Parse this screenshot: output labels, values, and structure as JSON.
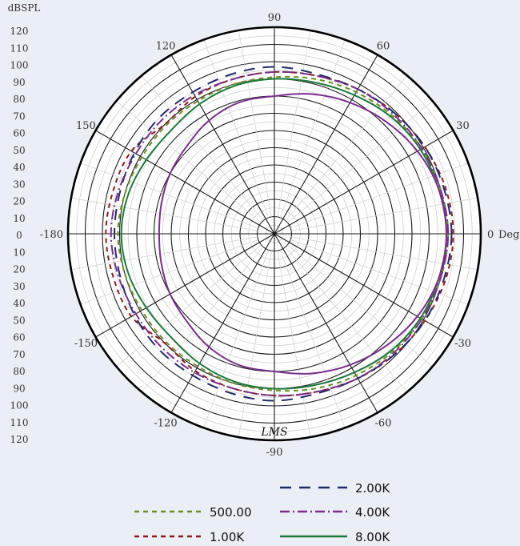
{
  "chart_data": {
    "type": "polar",
    "radial_unit": "dBSPL",
    "angle_unit": "Deg",
    "radial_ticks": [
      "120",
      "110",
      "100",
      "90",
      "80",
      "70",
      "60",
      "50",
      "40",
      "30",
      "20",
      "10",
      "0",
      "10",
      "20",
      "30",
      "40",
      "50",
      "60",
      "70",
      "80",
      "90",
      "100",
      "110",
      "120"
    ],
    "angle_labels": [
      {
        "deg": 0,
        "text": "0"
      },
      {
        "deg": 30,
        "text": "30"
      },
      {
        "deg": 60,
        "text": "60"
      },
      {
        "deg": 90,
        "text": "90"
      },
      {
        "deg": 120,
        "text": "120"
      },
      {
        "deg": 150,
        "text": "150"
      },
      {
        "deg": 180,
        "text": "-180"
      },
      {
        "deg": -150,
        "text": "-150"
      },
      {
        "deg": -120,
        "text": "-120"
      },
      {
        "deg": -90,
        "text": "-90"
      },
      {
        "deg": -60,
        "text": "-60"
      },
      {
        "deg": -30,
        "text": "-30"
      }
    ],
    "rlim": [
      0,
      120
    ],
    "grid": true,
    "watermark": "LMS",
    "angles_deg": [
      0,
      15,
      30,
      45,
      60,
      75,
      90,
      105,
      120,
      135,
      150,
      165,
      180,
      195,
      210,
      225,
      240,
      255,
      270,
      285,
      300,
      315,
      330,
      345
    ],
    "series": [
      {
        "name": "500.00",
        "color": "#6b8e23",
        "dash": "6,5",
        "values": [
          101,
          100,
          99,
          97,
          95,
          93,
          91,
          90,
          89,
          89,
          89,
          90,
          91,
          90,
          89,
          89,
          89,
          90,
          91,
          93,
          95,
          97,
          99,
          100
        ]
      },
      {
        "name": "1.00K",
        "color": "#8b1a1a",
        "dash": "6,5",
        "values": [
          104,
          103,
          101,
          99,
          97,
          95,
          94,
          93,
          92,
          90,
          96,
          97,
          98,
          97,
          96,
          90,
          92,
          93,
          94,
          95,
          97,
          99,
          101,
          103
        ]
      },
      {
        "name": "2.00K",
        "color": "#1f2a6e",
        "dash": "14,10",
        "values": [
          103,
          102,
          101,
          99,
          97,
          96,
          97,
          96,
          95,
          95,
          94,
          93,
          93,
          93,
          94,
          95,
          95,
          96,
          97,
          96,
          97,
          99,
          101,
          102
        ]
      },
      {
        "name": "4.00K",
        "color": "#7b2d8e",
        "dash": "12,4,2,4",
        "values": [
          101,
          100,
          99,
          98,
          97,
          95,
          94,
          93,
          93,
          93,
          93,
          94,
          95,
          94,
          93,
          93,
          93,
          93,
          94,
          95,
          97,
          98,
          99,
          100
        ]
      },
      {
        "name": "8.00K",
        "color": "#1b7a3a",
        "dash": "",
        "values": [
          100,
          99,
          98,
          96,
          93,
          91,
          90,
          89,
          87,
          85,
          86,
          88,
          89,
          88,
          86,
          85,
          87,
          89,
          90,
          91,
          93,
          96,
          98,
          99
        ]
      },
      {
        "name": "",
        "color": "#7b2d8e",
        "dash": "",
        "values": [
          100,
          99,
          96,
          92,
          88,
          84,
          80,
          79,
          76,
          72,
          70,
          68,
          67,
          68,
          70,
          72,
          76,
          79,
          80,
          84,
          88,
          92,
          96,
          99
        ]
      }
    ]
  },
  "legend": {
    "items": [
      {
        "label": "2.00K",
        "color": "#1f2a6e",
        "dash": "14,10"
      },
      {
        "label": "500.00",
        "color": "#6b8e23",
        "dash": "6,5"
      },
      {
        "label": "4.00K",
        "color": "#7b2d8e",
        "dash": "12,4,2,4"
      },
      {
        "label": "1.00K",
        "color": "#8b1a1a",
        "dash": "6,5"
      },
      {
        "label": "8.00K",
        "color": "#1b7a3a",
        "dash": ""
      }
    ]
  }
}
